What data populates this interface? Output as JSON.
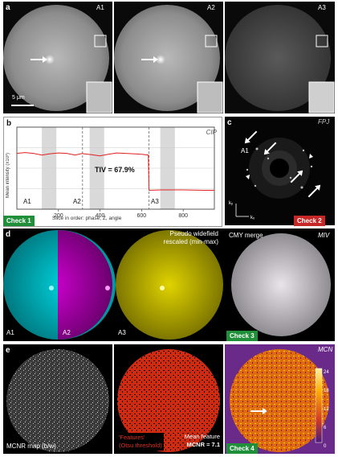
{
  "panel_a": {
    "letter": "a",
    "labels": [
      "A1",
      "A2",
      "A3"
    ],
    "scale_bar": "5 μm"
  },
  "panel_b": {
    "letter": "b",
    "method": "CIP",
    "tiv": "TIV = 67.9%",
    "ylabel": "Mean intensity (x10³)",
    "xlabel": "Slice in order: phase, Z, angle",
    "segments": [
      "A1",
      "A2",
      "A3"
    ],
    "check": "Check 1"
  },
  "panel_c": {
    "letter": "c",
    "method": "FPJ",
    "order_label": "A1",
    "ky": "kᵧ",
    "kx": "kₓ",
    "check": "Check 2"
  },
  "panel_d": {
    "letter": "d",
    "labels": [
      "A1",
      "A2",
      "A3"
    ],
    "title_line1": "Pseudo widefield",
    "title_line2": "rescaled (min-max)",
    "merge_label": "CMY merge",
    "method": "MIV",
    "check": "Check 3"
  },
  "panel_e": {
    "letter": "e",
    "map_label": "MCNR map (b/w)",
    "features_line1": "'Features'",
    "features_line2": "(Otsu threshold)",
    "mean_line1": "Mean feature",
    "mean_line2": "MCNR = 7.1",
    "method": "MCN",
    "colorbar_ticks": [
      "24",
      "18",
      "12",
      "6",
      "0"
    ],
    "check": "Check 4"
  },
  "chart_data": {
    "type": "line",
    "title": "",
    "xlabel": "Slice in order: phase, Z, angle",
    "ylabel": "Mean intensity (x10³)",
    "xlim": [
      0,
      950
    ],
    "ylim": [
      0,
      20
    ],
    "xticks": [
      200,
      400,
      600,
      800
    ],
    "yticks": [
      0,
      5,
      10,
      15,
      20
    ],
    "x": [
      0,
      40,
      80,
      120,
      160,
      200,
      240,
      280,
      316,
      320,
      360,
      400,
      440,
      480,
      520,
      560,
      600,
      632,
      636,
      700,
      800,
      900,
      950
    ],
    "series": [
      {
        "values": [
          13.6,
          13.8,
          13.6,
          13.2,
          13.5,
          13.7,
          13.6,
          13.2,
          13.6,
          13.5,
          13.3,
          13.0,
          13.4,
          13.7,
          13.6,
          13.5,
          13.4,
          13.2,
          4.6,
          4.7,
          4.7,
          4.6,
          4.6
        ]
      }
    ],
    "annotations": [
      "TIV = 67.9%",
      "A1",
      "A2",
      "A3"
    ],
    "grid": true
  },
  "colors": {
    "check_green": "#1f8f3a",
    "check_red": "#c62828",
    "series": "#e02020",
    "cyan": "#00d7e0",
    "magenta": "#d400d6",
    "yellow": "#e0d300"
  }
}
